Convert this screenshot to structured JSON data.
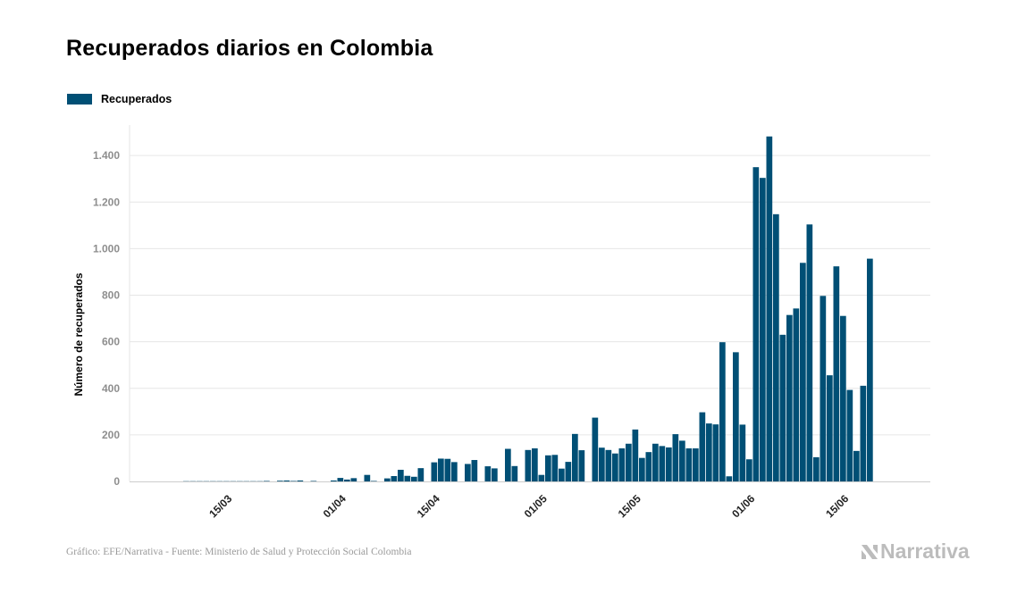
{
  "header": {
    "title": "Recuperados diarios en Colombia"
  },
  "footer": {
    "credit": "Gráfico: EFE/Narrativa - Fuente: Ministerio de Salud y Protección Social Colombia",
    "brand": "Narrativa"
  },
  "colors": {
    "bar": "#004f75",
    "grid": "#e6e6e6",
    "axis": "#cccccc"
  },
  "chart_data": {
    "type": "bar",
    "title": "Recuperados diarios en Colombia",
    "xlabel": "",
    "ylabel": "Número de recuperados",
    "ylim": [
      0,
      1500
    ],
    "yticks": [
      0,
      200,
      400,
      600,
      800,
      1000,
      1200,
      1400
    ],
    "ytick_labels": [
      "0",
      "200",
      "400",
      "600",
      "800",
      "1.000",
      "1.200",
      "1.400"
    ],
    "grid": true,
    "legend": "top-left",
    "x_start": "06/03",
    "xticks": [
      {
        "label": "15/03",
        "index": 9
      },
      {
        "label": "01/04",
        "index": 26
      },
      {
        "label": "15/04",
        "index": 40
      },
      {
        "label": "01/05",
        "index": 56
      },
      {
        "label": "15/05",
        "index": 70
      },
      {
        "label": "01/06",
        "index": 87
      },
      {
        "label": "15/06",
        "index": 101
      }
    ],
    "series": [
      {
        "name": "Recuperados",
        "values": [
          0,
          0,
          0,
          0,
          1,
          1,
          1,
          1,
          1,
          1,
          1,
          1,
          1,
          1,
          1,
          1,
          2,
          0,
          3,
          4,
          2,
          4,
          0,
          2,
          0,
          0,
          4,
          15,
          8,
          14,
          0,
          28,
          2,
          0,
          13,
          23,
          50,
          24,
          20,
          57,
          0,
          82,
          98,
          97,
          83,
          0,
          75,
          92,
          0,
          65,
          56,
          0,
          140,
          66,
          0,
          135,
          142,
          28,
          112,
          114,
          55,
          84,
          204,
          134,
          0,
          274,
          145,
          135,
          120,
          142,
          162,
          223,
          101,
          126,
          162,
          152,
          146,
          203,
          175,
          142,
          142,
          297,
          249,
          245,
          598,
          22,
          555,
          244,
          95,
          1350,
          1304,
          1482,
          1148,
          630,
          715,
          743,
          939,
          1104,
          104,
          797,
          456,
          924,
          711,
          393,
          131,
          411,
          957
        ]
      }
    ]
  }
}
